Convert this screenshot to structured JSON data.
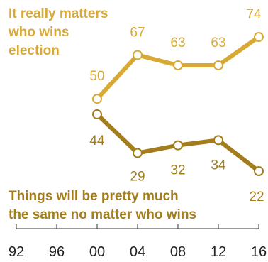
{
  "chart_data": {
    "type": "line",
    "x": [
      1992,
      1996,
      2000,
      2004,
      2008,
      2012,
      2016
    ],
    "x_tick_labels": [
      "92",
      "96",
      "00",
      "04",
      "08",
      "12",
      "16"
    ],
    "series": [
      {
        "name": "It really matters who wins election",
        "label_lines": [
          "It really matters",
          "who wins",
          "election"
        ],
        "color": "#d8aa35",
        "points": [
          {
            "x": 2000,
            "y": 50,
            "label": "50"
          },
          {
            "x": 2004,
            "y": 67,
            "label": "67"
          },
          {
            "x": 2008,
            "y": 63,
            "label": "63"
          },
          {
            "x": 2012,
            "y": 63,
            "label": "63"
          },
          {
            "x": 2016,
            "y": 74,
            "label": "74"
          }
        ]
      },
      {
        "name": "Things will be pretty much the same no matter who wins",
        "label_lines": [
          "Things will be pretty much",
          "the same no matter who wins"
        ],
        "color": "#a37d1c",
        "points": [
          {
            "x": 2000,
            "y": 44,
            "label": "44"
          },
          {
            "x": 2004,
            "y": 29,
            "label": "29"
          },
          {
            "x": 2008,
            "y": 32,
            "label": "32"
          },
          {
            "x": 2012,
            "y": 34,
            "label": "34"
          },
          {
            "x": 2016,
            "y": 22,
            "label": "22"
          }
        ]
      }
    ],
    "grid": false,
    "legend": "inline"
  }
}
